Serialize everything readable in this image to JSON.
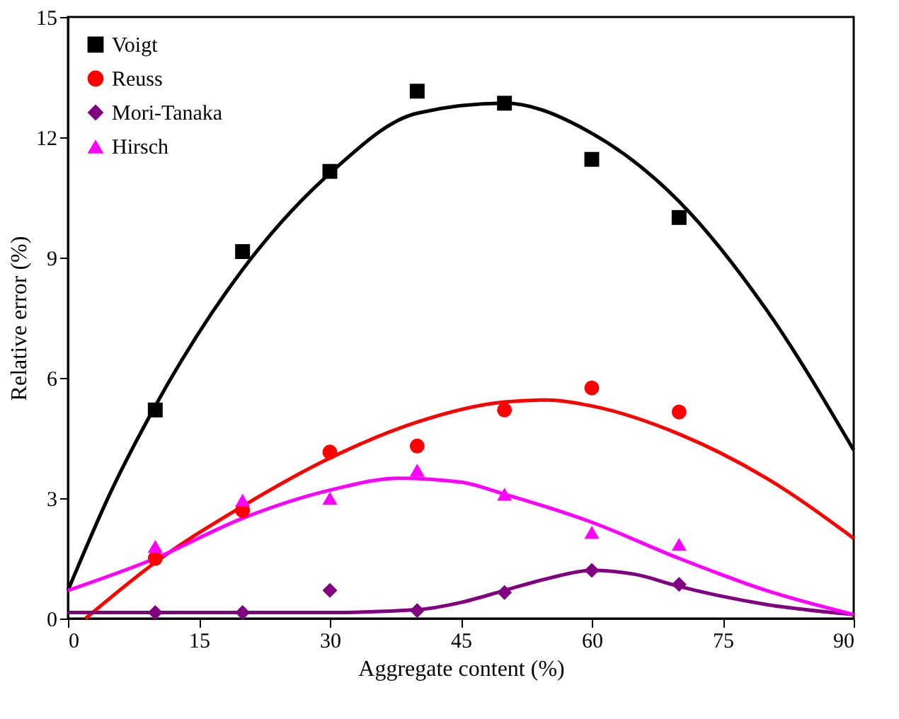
{
  "chart_data": {
    "type": "scatter",
    "xlabel": "Aggregate content (%)",
    "ylabel": "Relative error (%)",
    "xlim": [
      0,
      90
    ],
    "xticks": [
      0,
      15,
      30,
      45,
      60,
      75,
      90
    ],
    "ylim": [
      0,
      15
    ],
    "yticks": [
      0,
      3,
      6,
      9,
      12,
      15
    ],
    "grid": false,
    "legend": "top left",
    "line_style": "solid",
    "series": [
      {
        "name": "Voigt",
        "marker": "square",
        "color": "#000000",
        "x": [
          10,
          20,
          30,
          40,
          50,
          60,
          70
        ],
        "values": [
          5.2,
          9.15,
          11.15,
          13.15,
          12.85,
          11.45,
          10.0
        ]
      },
      {
        "name": "Reuss",
        "marker": "circle",
        "color": "#ff0000",
        "x": [
          10,
          20,
          30,
          40,
          50,
          60,
          70
        ],
        "values": [
          1.5,
          2.7,
          4.15,
          4.3,
          5.2,
          5.75,
          5.15
        ]
      },
      {
        "name": "Mori-Tanaka",
        "marker": "diamond",
        "color": "#800080",
        "x": [
          10,
          20,
          30,
          40,
          50,
          60,
          70
        ],
        "values": [
          0.15,
          0.15,
          0.7,
          0.2,
          0.65,
          1.2,
          0.85
        ]
      },
      {
        "name": "Hirsch",
        "marker": "triangle",
        "color": "#ff00ff",
        "x": [
          10,
          20,
          30,
          40,
          50,
          60,
          70
        ],
        "values": [
          1.8,
          2.95,
          3.0,
          3.7,
          3.1,
          2.15,
          1.85
        ]
      },
      {
        "type": "line",
        "color": "#000000",
        "x": [
          0,
          5,
          10,
          20,
          30,
          40,
          50,
          60,
          70,
          80,
          90
        ],
        "values": [
          0.7,
          3.2,
          5.3,
          8.7,
          11.1,
          12.6,
          12.85,
          12.1,
          10.4,
          7.7,
          4.2
        ]
      },
      {
        "type": "line",
        "color": "#ff0000",
        "x": [
          2,
          10,
          20,
          30,
          40,
          50,
          55,
          60,
          70,
          80,
          90
        ],
        "values": [
          0,
          1.4,
          2.8,
          4.0,
          4.9,
          5.4,
          5.45,
          5.3,
          4.6,
          3.5,
          2.0
        ]
      },
      {
        "type": "line",
        "color": "#800080",
        "x": [
          0,
          30,
          40,
          45,
          50,
          55,
          60,
          65,
          70,
          80,
          90
        ],
        "values": [
          0.15,
          0.15,
          0.22,
          0.4,
          0.7,
          1.0,
          1.2,
          1.1,
          0.8,
          0.35,
          0.1
        ]
      },
      {
        "type": "line",
        "color": "#ff00ff",
        "x": [
          0,
          10,
          20,
          30,
          38,
          45,
          50,
          60,
          70,
          80,
          90
        ],
        "values": [
          0.7,
          1.5,
          2.5,
          3.2,
          3.5,
          3.4,
          3.1,
          2.4,
          1.5,
          0.7,
          0.1
        ]
      }
    ]
  }
}
